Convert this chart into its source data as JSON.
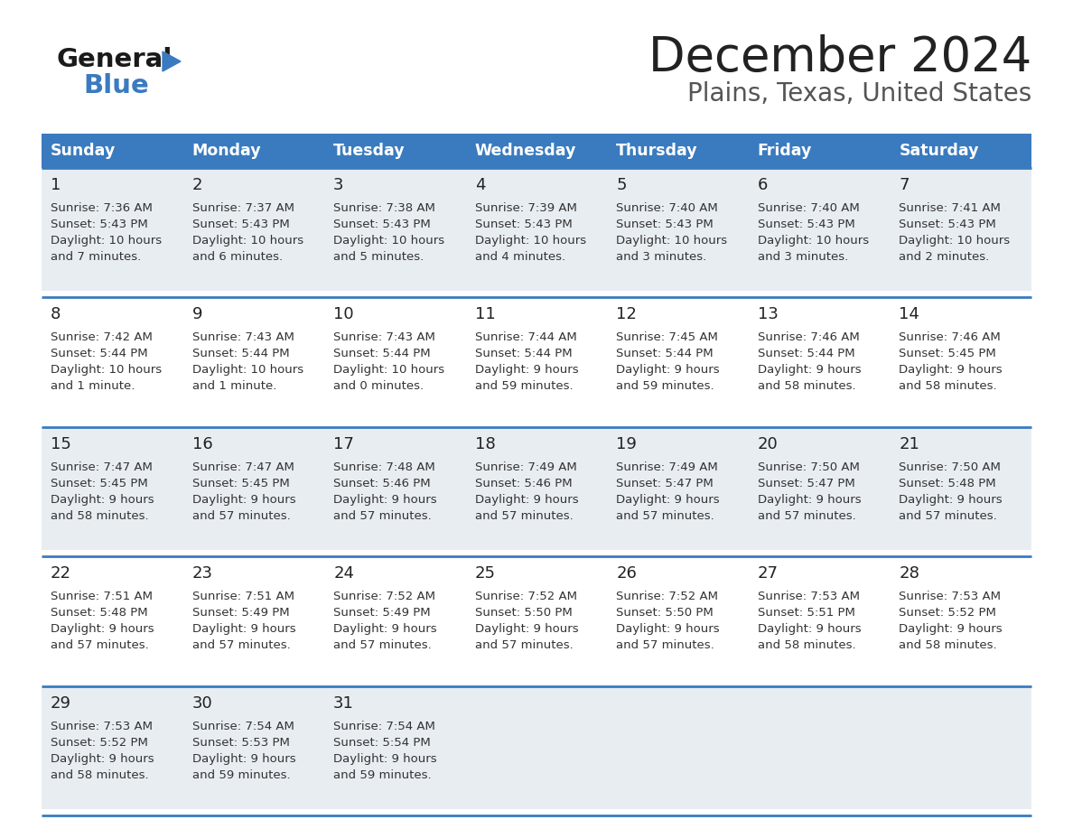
{
  "title": "December 2024",
  "subtitle": "Plains, Texas, United States",
  "header_color": "#3a7bbf",
  "header_text_color": "#ffffff",
  "day_names": [
    "Sunday",
    "Monday",
    "Tuesday",
    "Wednesday",
    "Thursday",
    "Friday",
    "Saturday"
  ],
  "bg_color": "#ffffff",
  "cell_bg_light": "#e8edf2",
  "cell_bg_white": "#ffffff",
  "border_color": "#3a7bbf",
  "day_num_color": "#222222",
  "text_color": "#333333",
  "logo_general_color": "#1a1a1a",
  "logo_blue_color": "#3a7bbf",
  "title_color": "#222222",
  "subtitle_color": "#555555",
  "calendar_data": [
    [
      {
        "day": 1,
        "sunrise": "7:36 AM",
        "sunset": "5:43 PM",
        "dl1": "Daylight: 10 hours",
        "dl2": "and 7 minutes."
      },
      {
        "day": 2,
        "sunrise": "7:37 AM",
        "sunset": "5:43 PM",
        "dl1": "Daylight: 10 hours",
        "dl2": "and 6 minutes."
      },
      {
        "day": 3,
        "sunrise": "7:38 AM",
        "sunset": "5:43 PM",
        "dl1": "Daylight: 10 hours",
        "dl2": "and 5 minutes."
      },
      {
        "day": 4,
        "sunrise": "7:39 AM",
        "sunset": "5:43 PM",
        "dl1": "Daylight: 10 hours",
        "dl2": "and 4 minutes."
      },
      {
        "day": 5,
        "sunrise": "7:40 AM",
        "sunset": "5:43 PM",
        "dl1": "Daylight: 10 hours",
        "dl2": "and 3 minutes."
      },
      {
        "day": 6,
        "sunrise": "7:40 AM",
        "sunset": "5:43 PM",
        "dl1": "Daylight: 10 hours",
        "dl2": "and 3 minutes."
      },
      {
        "day": 7,
        "sunrise": "7:41 AM",
        "sunset": "5:43 PM",
        "dl1": "Daylight: 10 hours",
        "dl2": "and 2 minutes."
      }
    ],
    [
      {
        "day": 8,
        "sunrise": "7:42 AM",
        "sunset": "5:44 PM",
        "dl1": "Daylight: 10 hours",
        "dl2": "and 1 minute."
      },
      {
        "day": 9,
        "sunrise": "7:43 AM",
        "sunset": "5:44 PM",
        "dl1": "Daylight: 10 hours",
        "dl2": "and 1 minute."
      },
      {
        "day": 10,
        "sunrise": "7:43 AM",
        "sunset": "5:44 PM",
        "dl1": "Daylight: 10 hours",
        "dl2": "and 0 minutes."
      },
      {
        "day": 11,
        "sunrise": "7:44 AM",
        "sunset": "5:44 PM",
        "dl1": "Daylight: 9 hours",
        "dl2": "and 59 minutes."
      },
      {
        "day": 12,
        "sunrise": "7:45 AM",
        "sunset": "5:44 PM",
        "dl1": "Daylight: 9 hours",
        "dl2": "and 59 minutes."
      },
      {
        "day": 13,
        "sunrise": "7:46 AM",
        "sunset": "5:44 PM",
        "dl1": "Daylight: 9 hours",
        "dl2": "and 58 minutes."
      },
      {
        "day": 14,
        "sunrise": "7:46 AM",
        "sunset": "5:45 PM",
        "dl1": "Daylight: 9 hours",
        "dl2": "and 58 minutes."
      }
    ],
    [
      {
        "day": 15,
        "sunrise": "7:47 AM",
        "sunset": "5:45 PM",
        "dl1": "Daylight: 9 hours",
        "dl2": "and 58 minutes."
      },
      {
        "day": 16,
        "sunrise": "7:47 AM",
        "sunset": "5:45 PM",
        "dl1": "Daylight: 9 hours",
        "dl2": "and 57 minutes."
      },
      {
        "day": 17,
        "sunrise": "7:48 AM",
        "sunset": "5:46 PM",
        "dl1": "Daylight: 9 hours",
        "dl2": "and 57 minutes."
      },
      {
        "day": 18,
        "sunrise": "7:49 AM",
        "sunset": "5:46 PM",
        "dl1": "Daylight: 9 hours",
        "dl2": "and 57 minutes."
      },
      {
        "day": 19,
        "sunrise": "7:49 AM",
        "sunset": "5:47 PM",
        "dl1": "Daylight: 9 hours",
        "dl2": "and 57 minutes."
      },
      {
        "day": 20,
        "sunrise": "7:50 AM",
        "sunset": "5:47 PM",
        "dl1": "Daylight: 9 hours",
        "dl2": "and 57 minutes."
      },
      {
        "day": 21,
        "sunrise": "7:50 AM",
        "sunset": "5:48 PM",
        "dl1": "Daylight: 9 hours",
        "dl2": "and 57 minutes."
      }
    ],
    [
      {
        "day": 22,
        "sunrise": "7:51 AM",
        "sunset": "5:48 PM",
        "dl1": "Daylight: 9 hours",
        "dl2": "and 57 minutes."
      },
      {
        "day": 23,
        "sunrise": "7:51 AM",
        "sunset": "5:49 PM",
        "dl1": "Daylight: 9 hours",
        "dl2": "and 57 minutes."
      },
      {
        "day": 24,
        "sunrise": "7:52 AM",
        "sunset": "5:49 PM",
        "dl1": "Daylight: 9 hours",
        "dl2": "and 57 minutes."
      },
      {
        "day": 25,
        "sunrise": "7:52 AM",
        "sunset": "5:50 PM",
        "dl1": "Daylight: 9 hours",
        "dl2": "and 57 minutes."
      },
      {
        "day": 26,
        "sunrise": "7:52 AM",
        "sunset": "5:50 PM",
        "dl1": "Daylight: 9 hours",
        "dl2": "and 57 minutes."
      },
      {
        "day": 27,
        "sunrise": "7:53 AM",
        "sunset": "5:51 PM",
        "dl1": "Daylight: 9 hours",
        "dl2": "and 58 minutes."
      },
      {
        "day": 28,
        "sunrise": "7:53 AM",
        "sunset": "5:52 PM",
        "dl1": "Daylight: 9 hours",
        "dl2": "and 58 minutes."
      }
    ],
    [
      {
        "day": 29,
        "sunrise": "7:53 AM",
        "sunset": "5:52 PM",
        "dl1": "Daylight: 9 hours",
        "dl2": "and 58 minutes."
      },
      {
        "day": 30,
        "sunrise": "7:54 AM",
        "sunset": "5:53 PM",
        "dl1": "Daylight: 9 hours",
        "dl2": "and 59 minutes."
      },
      {
        "day": 31,
        "sunrise": "7:54 AM",
        "sunset": "5:54 PM",
        "dl1": "Daylight: 9 hours",
        "dl2": "and 59 minutes."
      },
      null,
      null,
      null,
      null
    ]
  ]
}
